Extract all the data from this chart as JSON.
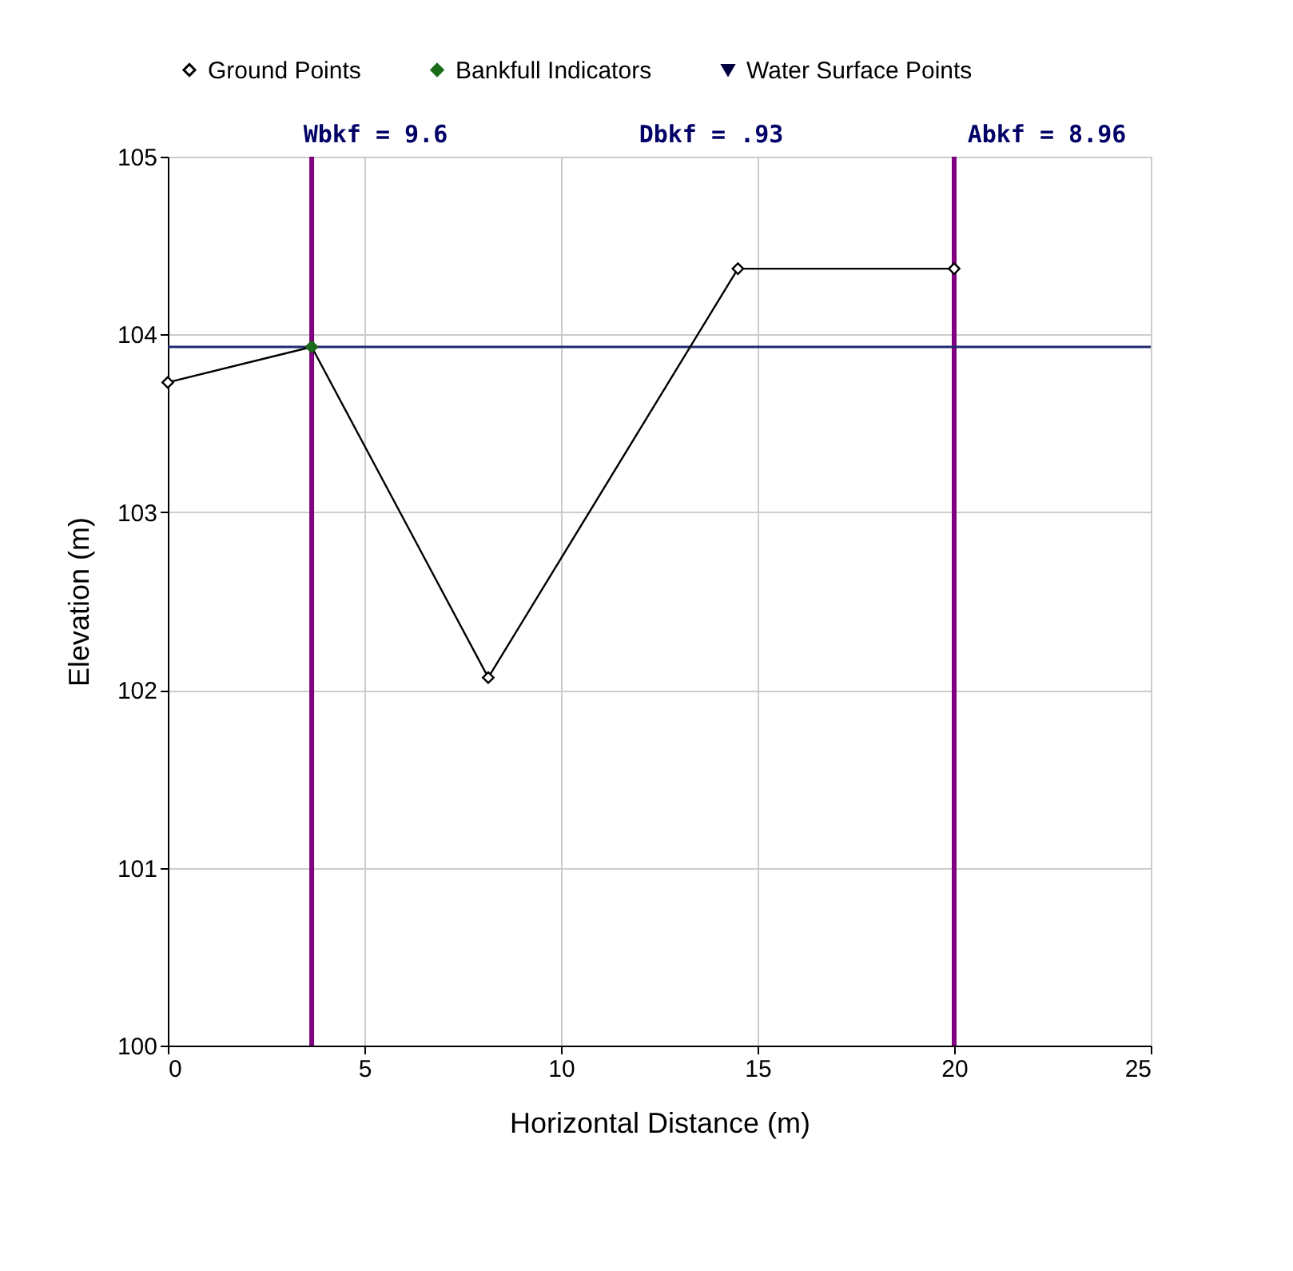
{
  "chart_data": {
    "type": "line",
    "xlabel": "Horizontal Distance (m)",
    "ylabel": "Elevation (m)",
    "annotations": [
      "Wbkf = 9.6",
      "Dbkf = .93",
      "Abkf = 8.96"
    ],
    "xlim": [
      0,
      25
    ],
    "xticks": [
      0,
      5,
      10,
      15,
      20,
      25
    ],
    "ylim": [
      100,
      105
    ],
    "yticks": [
      100,
      101,
      102,
      103,
      104,
      105
    ],
    "grid": true,
    "legend": "top",
    "series": [
      {
        "name": "Ground Points",
        "marker": "diamond",
        "color": "#000000",
        "x": [
          0,
          3.66,
          8.15,
          14.5,
          20
        ],
        "values": [
          103.73,
          103.93,
          102.07,
          104.37,
          104.37
        ]
      },
      {
        "name": "Bankfull Indicators",
        "type": "scatter",
        "marker": "diamond",
        "color": "#1a6b1a",
        "x": [
          3.66
        ],
        "values": [
          103.93
        ]
      },
      {
        "name": "Water Surface Points",
        "type": "scatter",
        "marker": "triangle",
        "color": "#000040"
      }
    ],
    "ref_lines": [
      {
        "axis": "x",
        "value": 3.66,
        "color": "#800080"
      },
      {
        "axis": "x",
        "value": 20,
        "color": "#800080"
      },
      {
        "axis": "y",
        "value": 103.93,
        "color": "#1f2a6e"
      }
    ]
  }
}
